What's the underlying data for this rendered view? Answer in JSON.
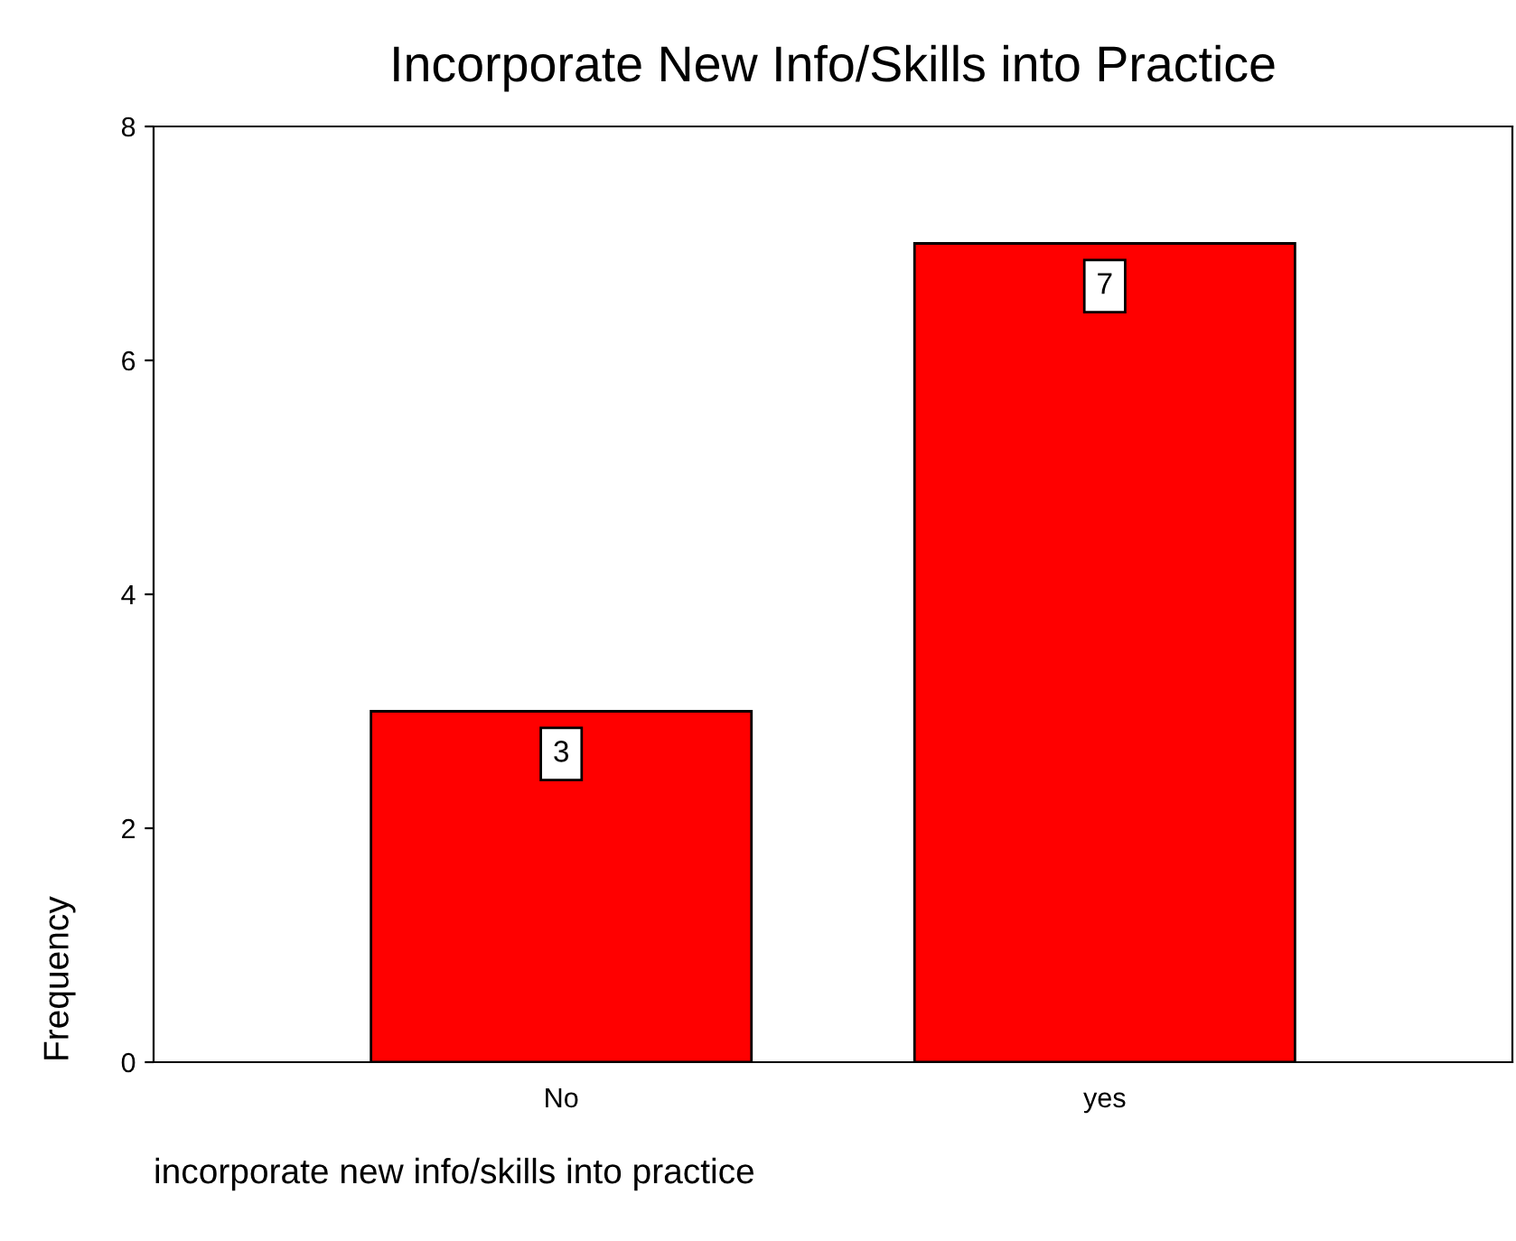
{
  "chart_data": {
    "type": "bar",
    "title": "Incorporate New Info/Skills into Practice",
    "xlabel": "incorporate new info/skills into practice",
    "ylabel": "Frequency",
    "categories": [
      "No",
      "yes"
    ],
    "values": [
      3,
      7
    ],
    "color": "#ff0000",
    "ylim": [
      0,
      8
    ],
    "yticks": [
      0,
      2,
      4,
      6,
      8
    ],
    "grid": false,
    "data_labels": true
  }
}
